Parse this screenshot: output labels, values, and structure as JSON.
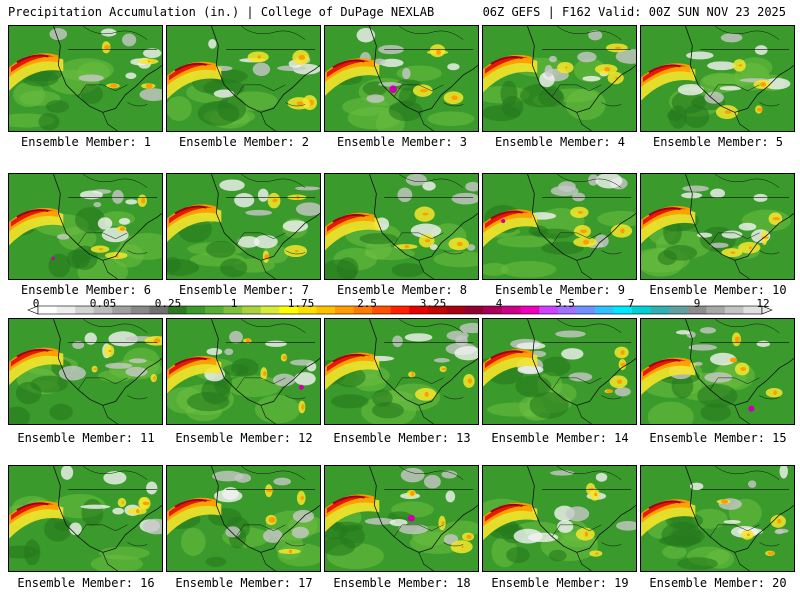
{
  "header": {
    "title_left": "Precipitation Accumulation (in.) | College of DuPage NEXLAB",
    "title_right": "06Z GEFS | F162 Valid: 00Z SUN NOV 23 2025"
  },
  "panels": [
    {
      "label": "Ensemble Member: 1"
    },
    {
      "label": "Ensemble Member: 2"
    },
    {
      "label": "Ensemble Member: 3"
    },
    {
      "label": "Ensemble Member: 4"
    },
    {
      "label": "Ensemble Member: 5"
    },
    {
      "label": "Ensemble Member: 6"
    },
    {
      "label": "Ensemble Member: 7"
    },
    {
      "label": "Ensemble Member: 8"
    },
    {
      "label": "Ensemble Member: 9"
    },
    {
      "label": "Ensemble Member: 10"
    },
    {
      "label": "Ensemble Member: 11"
    },
    {
      "label": "Ensemble Member: 12"
    },
    {
      "label": "Ensemble Member: 13"
    },
    {
      "label": "Ensemble Member: 14"
    },
    {
      "label": "Ensemble Member: 15"
    },
    {
      "label": "Ensemble Member: 16"
    },
    {
      "label": "Ensemble Member: 17"
    },
    {
      "label": "Ensemble Member: 18"
    },
    {
      "label": "Ensemble Member: 19"
    },
    {
      "label": "Ensemble Member: 20"
    }
  ],
  "colorbar": {
    "labels": [
      "0",
      "0.05",
      "0.25",
      "1",
      "1.75",
      "2.5",
      "3.25",
      "4",
      "5.5",
      "7",
      "9",
      "12"
    ],
    "colors": [
      "#ffffff",
      "#eeeeee",
      "#d4d4d4",
      "#bcbcbc",
      "#a0a0a0",
      "#888888",
      "#707070",
      "#2f7a20",
      "#3a9a2c",
      "#55b034",
      "#7ec23a",
      "#a8d43c",
      "#d8ea3c",
      "#ffff00",
      "#ffe000",
      "#ffc000",
      "#ff9c00",
      "#ff7a00",
      "#ff5000",
      "#ff2000",
      "#e80000",
      "#c80000",
      "#a80010",
      "#900030",
      "#a8005a",
      "#cc0088",
      "#ee00bb",
      "#d040ff",
      "#a070ff",
      "#7090ff",
      "#30c0ff",
      "#00e8ff",
      "#00d0d0",
      "#30b0b0",
      "#60a0a0",
      "#8c8c8c",
      "#a8a8a8",
      "#c4c4c4",
      "#e0e0e0"
    ]
  },
  "map_colors": {
    "base_green": "#3a9a2c",
    "light_green": "#6cc040",
    "dark_green": "#257a1c",
    "yellow": "#f6e62c",
    "orange": "#ff9c00",
    "red": "#e61a00",
    "darkred": "#a0001a",
    "magenta": "#cc00aa",
    "gray": "#c8c8c8",
    "white": "#f4f4f4"
  }
}
